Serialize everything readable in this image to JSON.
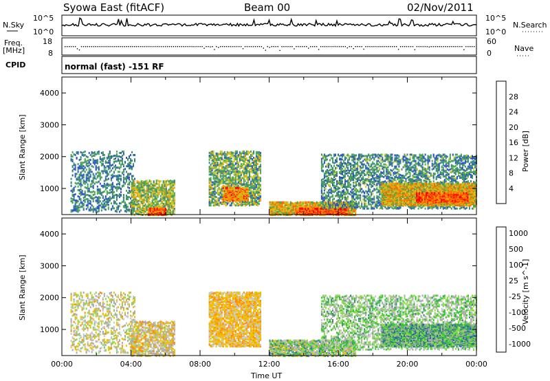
{
  "header": {
    "station": "Syowa East (fitACF)",
    "beam": "Beam 00",
    "date": "02/Nov/2011"
  },
  "noise_panel": {
    "left_label": "N.Sky",
    "right_label": "N.Search",
    "left_ticks": [
      "10^5",
      "10^0"
    ],
    "right_ticks": [
      "10^5",
      "10^0"
    ]
  },
  "freq_panel": {
    "left_label_1": "Freq.",
    "left_label_2": "[MHz]",
    "left_ticks": [
      "18",
      "8"
    ],
    "right_label": "Nave",
    "right_ticks": [
      "60",
      "0"
    ],
    "cpid_label": "CPID",
    "cpid_text": "normal (fast) -151 RF"
  },
  "colors": {
    "power_scale": [
      "#0000ff",
      "#2b55c8",
      "#3c8a78",
      "#4aa84c",
      "#c8c828",
      "#f0a000",
      "#ff6a00",
      "#ff0000"
    ],
    "velocity_scale": [
      "#ff0000",
      "#ff5a00",
      "#ff8c00",
      "#f0c000",
      "#c8c8c8",
      "#aaaaaa",
      "#8cdc46",
      "#32c832",
      "#3c8c78",
      "#2b55c8",
      "#0000ff"
    ]
  },
  "chart_data": [
    {
      "type": "heatmap",
      "panel": "power",
      "ylabel": "Slant Range [km]",
      "yticks": [
        "1000",
        "2000",
        "3000",
        "4000"
      ],
      "ylim": [
        180,
        4500
      ],
      "colorbar_label": "Power [dB]",
      "colorbar_ticks": [
        "4",
        "8",
        "12",
        "16",
        "20",
        "24",
        "28"
      ],
      "colorbar_range": [
        0,
        30
      ],
      "x_unit": "hours UT",
      "regions": [
        {
          "t0": 0.5,
          "t1": 4.2,
          "r0": 300,
          "r1": 2200,
          "density": 0.22,
          "v": [
            4,
            14
          ]
        },
        {
          "t0": 4.0,
          "t1": 6.5,
          "r0": 200,
          "r1": 1300,
          "density": 0.45,
          "v": [
            8,
            22
          ]
        },
        {
          "t0": 5.0,
          "t1": 6.0,
          "r0": 200,
          "r1": 400,
          "density": 0.9,
          "v": [
            18,
            30
          ]
        },
        {
          "t0": 8.5,
          "t1": 11.5,
          "r0": 500,
          "r1": 2200,
          "density": 0.4,
          "v": [
            6,
            20
          ]
        },
        {
          "t0": 9.3,
          "t1": 10.8,
          "r0": 650,
          "r1": 1050,
          "density": 0.8,
          "v": [
            16,
            28
          ]
        },
        {
          "t0": 12.0,
          "t1": 17.0,
          "r0": 200,
          "r1": 600,
          "density": 0.7,
          "v": [
            12,
            26
          ]
        },
        {
          "t0": 13.5,
          "t1": 16.5,
          "r0": 220,
          "r1": 400,
          "density": 0.85,
          "v": [
            20,
            30
          ]
        },
        {
          "t0": 15.0,
          "t1": 24.0,
          "r0": 400,
          "r1": 2100,
          "density": 0.3,
          "v": [
            4,
            16
          ]
        },
        {
          "t0": 18.5,
          "t1": 24.0,
          "r0": 500,
          "r1": 1200,
          "density": 0.75,
          "v": [
            12,
            26
          ]
        },
        {
          "t0": 20.5,
          "t1": 23.5,
          "r0": 600,
          "r1": 900,
          "density": 0.85,
          "v": [
            20,
            30
          ]
        }
      ]
    },
    {
      "type": "heatmap",
      "panel": "velocity",
      "ylabel": "Slant Range [km]",
      "yticks": [
        "1000",
        "2000",
        "3000",
        "4000"
      ],
      "ylim": [
        180,
        4500
      ],
      "colorbar_label": "Velocity [m s^-1]",
      "colorbar_ticks": [
        "1000",
        "500",
        "100",
        "25",
        "-25",
        "-100",
        "-500",
        "-1000"
      ],
      "colorbar_range": [
        -1200,
        1200
      ],
      "x_unit": "hours UT",
      "xlabel": "Time UT",
      "xticks": [
        "00:00",
        "04:00",
        "08:00",
        "12:00",
        "16:00",
        "20:00",
        "00:00"
      ],
      "regions": [
        {
          "t0": 0.5,
          "t1": 4.2,
          "r0": 300,
          "r1": 2200,
          "density": 0.2,
          "v": [
            -600,
            300
          ]
        },
        {
          "t0": 4.0,
          "t1": 6.5,
          "r0": 200,
          "r1": 1300,
          "density": 0.45,
          "v": [
            -700,
            200
          ]
        },
        {
          "t0": 8.5,
          "t1": 11.5,
          "r0": 500,
          "r1": 2200,
          "density": 0.55,
          "v": [
            -650,
            -200
          ]
        },
        {
          "t0": 12.0,
          "t1": 17.0,
          "r0": 200,
          "r1": 700,
          "density": 0.65,
          "v": [
            -500,
            800
          ]
        },
        {
          "t0": 15.0,
          "t1": 24.0,
          "r0": 400,
          "r1": 2100,
          "density": 0.3,
          "v": [
            -300,
            600
          ]
        },
        {
          "t0": 18.5,
          "t1": 24.0,
          "r0": 500,
          "r1": 1200,
          "density": 0.7,
          "v": [
            -100,
            900
          ]
        }
      ]
    }
  ]
}
